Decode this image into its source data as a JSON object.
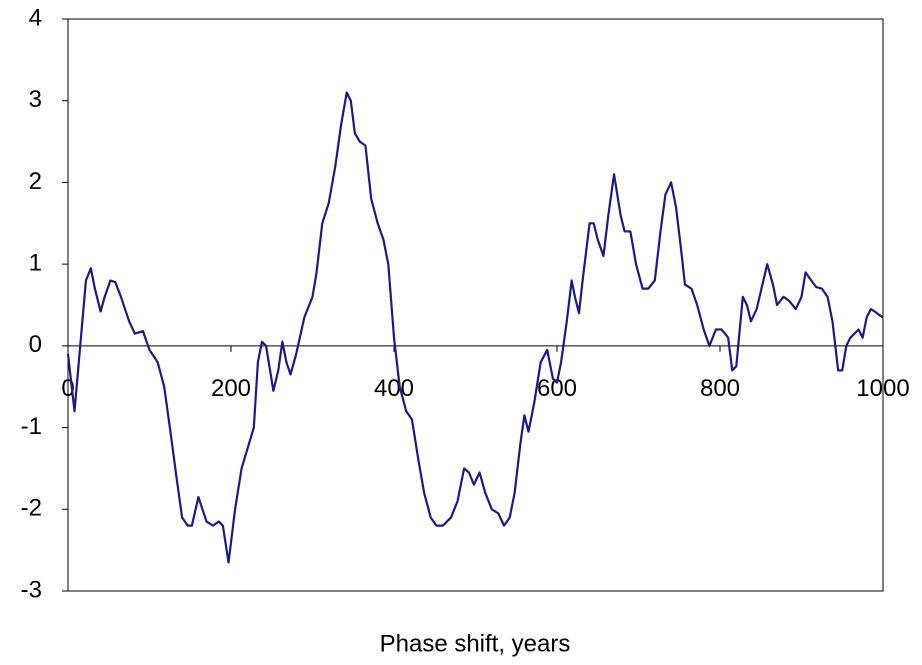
{
  "chart_data": {
    "type": "line",
    "x_label": "Phase shift, years",
    "color": "#1a1a8c",
    "x": [
      0,
      8,
      15,
      22,
      28,
      33,
      40,
      45,
      52,
      58,
      65,
      75,
      82,
      92,
      100,
      110,
      118,
      125,
      133,
      140,
      147,
      152,
      160,
      165,
      170,
      178,
      185,
      190,
      197,
      205,
      213,
      222,
      228,
      233,
      238,
      243,
      252,
      258,
      263,
      268,
      273,
      280,
      290,
      300,
      305,
      312,
      320,
      328,
      335,
      342,
      347,
      352,
      358,
      365,
      372,
      380,
      387,
      393,
      400,
      407,
      415,
      422,
      430,
      437,
      445,
      452,
      460,
      470,
      478,
      486,
      492,
      498,
      505,
      512,
      520,
      528,
      535,
      542,
      548,
      555,
      560,
      565,
      572,
      580,
      588,
      595,
      600,
      605,
      612,
      618,
      622,
      627,
      632,
      640,
      645,
      650,
      657,
      663,
      670,
      678,
      683,
      690,
      697,
      705,
      712,
      720,
      727,
      733,
      740,
      746,
      752,
      757,
      765,
      772,
      780,
      787,
      795,
      802,
      810,
      815,
      820,
      828,
      833,
      838,
      845,
      852,
      858,
      865,
      870,
      878,
      885,
      893,
      900,
      905,
      912,
      918,
      925,
      932,
      938,
      945,
      950,
      955,
      960,
      965,
      970,
      975,
      980,
      985,
      990,
      995,
      1000
    ],
    "values": [
      -0.1,
      -0.8,
      0,
      0.8,
      0.95,
      0.7,
      0.42,
      0.6,
      0.8,
      0.78,
      0.6,
      0.3,
      0.15,
      0.18,
      -0.05,
      -0.2,
      -0.5,
      -1.0,
      -1.6,
      -2.1,
      -2.2,
      -2.2,
      -1.85,
      -2.0,
      -2.15,
      -2.2,
      -2.15,
      -2.2,
      -2.65,
      -2.0,
      -1.5,
      -1.2,
      -1.0,
      -0.2,
      0.05,
      0,
      -0.55,
      -0.3,
      0.05,
      -0.2,
      -0.35,
      -0.1,
      0.35,
      0.6,
      0.9,
      1.5,
      1.75,
      2.2,
      2.7,
      3.1,
      3.0,
      2.6,
      2.5,
      2.45,
      1.8,
      1.5,
      1.3,
      1.0,
      0.1,
      -0.5,
      -0.8,
      -0.9,
      -1.4,
      -1.8,
      -2.1,
      -2.2,
      -2.2,
      -2.1,
      -1.9,
      -1.5,
      -1.55,
      -1.7,
      -1.55,
      -1.8,
      -2.0,
      -2.05,
      -2.2,
      -2.1,
      -1.8,
      -1.2,
      -0.85,
      -1.05,
      -0.7,
      -0.2,
      -0.05,
      -0.4,
      -0.45,
      -0.2,
      0.3,
      0.8,
      0.6,
      0.4,
      0.85,
      1.5,
      1.5,
      1.3,
      1.1,
      1.6,
      2.1,
      1.6,
      1.4,
      1.4,
      1.0,
      0.7,
      0.7,
      0.8,
      1.4,
      1.85,
      2.0,
      1.7,
      1.2,
      0.75,
      0.7,
      0.5,
      0.2,
      0,
      0.2,
      0.2,
      0.1,
      -0.3,
      -0.25,
      0.6,
      0.5,
      0.3,
      0.45,
      0.75,
      1.0,
      0.75,
      0.5,
      0.6,
      0.55,
      0.45,
      0.6,
      0.9,
      0.8,
      0.72,
      0.7,
      0.6,
      0.3,
      -0.3,
      -0.3,
      0,
      0.1,
      0.15,
      0.2,
      0.1,
      0.35,
      0.45,
      0.42,
      0.38,
      0.35
    ],
    "xlim": [
      0,
      1000
    ],
    "xticks": [
      0,
      200,
      400,
      600,
      800,
      1000
    ],
    "ylim": [
      -3,
      4
    ],
    "yticks": [
      -3,
      -2,
      -1,
      0,
      1,
      2,
      3,
      4
    ]
  }
}
